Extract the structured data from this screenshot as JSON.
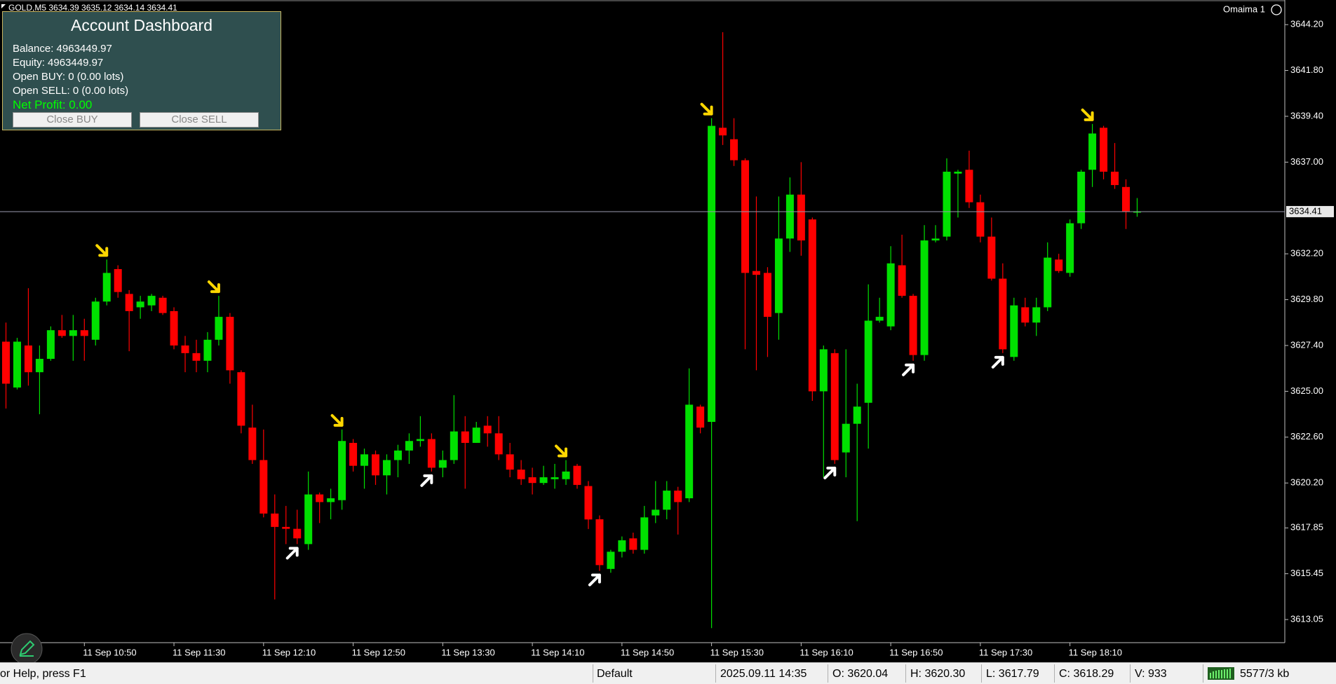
{
  "header": {
    "symbol_line": "GOLD,M5  3634.39 3635.12 3634.14 3634.41",
    "account": "Omaima 1"
  },
  "dashboard": {
    "title": "Account Dashboard",
    "balance": "Balance: 4963449.97",
    "equity": "Equity:  4963449.97",
    "open_buy": "Open BUY:  0  (0.00 lots)",
    "open_sell": "Open SELL:  0  (0.00 lots)",
    "net_profit": "Net Profit: 0.00",
    "close_buy": "Close BUY",
    "close_sell": "Close SELL"
  },
  "chart_data": {
    "type": "candlestick",
    "categories": [
      null,
      null,
      null,
      null,
      null,
      null,
      null,
      "11 Sep 10:50",
      null,
      null,
      null,
      null,
      null,
      null,
      null,
      "11 Sep 11:30",
      null,
      null,
      null,
      null,
      null,
      null,
      null,
      "11 Sep 12:10",
      null,
      null,
      null,
      null,
      null,
      null,
      null,
      "11 Sep 12:50",
      null,
      null,
      null,
      null,
      null,
      null,
      null,
      "11 Sep 13:30",
      null,
      null,
      null,
      null,
      null,
      null,
      null,
      "11 Sep 14:10",
      null,
      null,
      null,
      null,
      null,
      null,
      null,
      "11 Sep 14:50",
      null,
      null,
      null,
      null,
      null,
      null,
      null,
      "11 Sep 15:30",
      null,
      null,
      null,
      null,
      null,
      null,
      null,
      "11 Sep 16:10",
      null,
      null,
      null,
      null,
      null,
      null,
      null,
      "11 Sep 16:50",
      null,
      null,
      null,
      null,
      null,
      null,
      null,
      "11 Sep 17:30",
      null,
      null,
      null,
      null,
      null,
      null,
      null,
      "11 Sep 18:10",
      null,
      null,
      null,
      null,
      null,
      null
    ],
    "open": [
      3627.6,
      3625.2,
      3627.4,
      3626.0,
      3626.7,
      3628.2,
      3627.9,
      3628.2,
      3627.7,
      3629.7,
      3631.4,
      3630.1,
      3629.4,
      3629.5,
      3629.9,
      3629.2,
      3627.4,
      3627.0,
      3626.6,
      3627.7,
      3628.9,
      3626.0,
      3623.1,
      3621.4,
      3618.6,
      3617.9,
      3617.8,
      3617.0,
      3619.6,
      3619.2,
      3619.3,
      3622.3,
      3621.1,
      3621.7,
      3620.6,
      3621.4,
      3621.9,
      3622.4,
      3622.5,
      3621.0,
      3621.4,
      3622.9,
      3622.3,
      3623.2,
      3622.8,
      3621.7,
      3620.9,
      3620.5,
      3620.2,
      3620.4,
      3620.4,
      3621.1,
      3620.04,
      3618.3,
      3615.7,
      3616.6,
      3617.3,
      3616.7,
      3618.5,
      3618.8,
      3619.8,
      3619.4,
      3624.2,
      3623.4,
      3638.8,
      3638.2,
      3637.1,
      3631.3,
      3631.2,
      3629.1,
      3633.0,
      3635.3,
      3634.0,
      3625.0,
      3627.0,
      3621.8,
      3623.3,
      3624.4,
      3628.7,
      3628.4,
      3631.6,
      3630.0,
      3626.9,
      3632.9,
      3633.1,
      3636.4,
      3636.6,
      3634.9,
      3633.1,
      3630.9,
      3626.8,
      3629.4,
      3628.6,
      3629.4,
      3631.9,
      3631.2,
      3633.8,
      3636.6,
      3638.8,
      3636.5,
      3635.7,
      3634.39
    ],
    "high": [
      3628.6,
      3627.8,
      3630.4,
      3627.4,
      3628.4,
      3629.0,
      3629.0,
      3628.8,
      3629.9,
      3631.9,
      3631.6,
      3630.3,
      3630.0,
      3630.1,
      3630.0,
      3629.4,
      3627.9,
      3627.7,
      3628.1,
      3630.0,
      3629.1,
      3626.1,
      3624.3,
      3623.0,
      3619.6,
      3619.0,
      3618.8,
      3620.8,
      3619.7,
      3619.9,
      3623.0,
      3622.5,
      3622.0,
      3621.9,
      3621.7,
      3622.2,
      3622.8,
      3623.7,
      3622.8,
      3621.9,
      3624.8,
      3623.7,
      3623.4,
      3623.7,
      3623.7,
      3622.3,
      3621.4,
      3621.0,
      3621.1,
      3621.2,
      3621.4,
      3621.2,
      3620.3,
      3618.5,
      3616.7,
      3617.4,
      3617.6,
      3619.0,
      3620.3,
      3620.3,
      3620.0,
      3626.2,
      3624.3,
      3639.3,
      3643.8,
      3639.3,
      3637.2,
      3635.2,
      3631.5,
      3635.2,
      3636.2,
      3637.0,
      3634.1,
      3627.4,
      3627.2,
      3627.2,
      3625.4,
      3630.6,
      3629.9,
      3632.6,
      3633.2,
      3630.1,
      3633.7,
      3633.7,
      3637.2,
      3636.6,
      3637.6,
      3635.3,
      3634.1,
      3631.7,
      3629.9,
      3629.9,
      3629.9,
      3632.8,
      3632.2,
      3634.0,
      3636.6,
      3639.0,
      3638.9,
      3638.0,
      3636.1,
      3635.12
    ],
    "low": [
      3624.1,
      3625.1,
      3625.3,
      3623.8,
      3626.6,
      3627.8,
      3626.6,
      3626.6,
      3627.4,
      3629.5,
      3629.9,
      3627.1,
      3628.8,
      3629.2,
      3629.0,
      3627.2,
      3626.0,
      3626.0,
      3626.0,
      3627.4,
      3625.4,
      3622.8,
      3621.2,
      3618.4,
      3614.1,
      3617.0,
      3617.0,
      3616.7,
      3618.1,
      3618.3,
      3618.8,
      3620.8,
      3619.9,
      3620.1,
      3619.6,
      3620.5,
      3621.2,
      3622.1,
      3620.8,
      3620.5,
      3621.2,
      3619.9,
      3622.3,
      3622.1,
      3621.4,
      3620.5,
      3620.1,
      3619.6,
      3620.1,
      3619.9,
      3620.1,
      3619.9,
      3617.79,
      3615.6,
      3615.5,
      3616.3,
      3616.5,
      3616.5,
      3618.1,
      3618.3,
      3617.5,
      3619.2,
      3622.8,
      3612.6,
      3637.9,
      3636.8,
      3627.2,
      3626.1,
      3626.8,
      3627.7,
      3632.3,
      3632.1,
      3624.5,
      3620.5,
      3621.2,
      3620.5,
      3618.2,
      3622.0,
      3628.6,
      3628.2,
      3629.9,
      3626.6,
      3626.6,
      3632.8,
      3632.9,
      3634.1,
      3634.6,
      3632.8,
      3630.8,
      3627.0,
      3626.6,
      3628.4,
      3627.9,
      3629.2,
      3631.2,
      3631.0,
      3633.5,
      3635.7,
      3636.1,
      3635.6,
      3633.5,
      3634.14
    ],
    "close": [
      3625.4,
      3627.6,
      3626.0,
      3626.7,
      3628.2,
      3627.9,
      3628.2,
      3627.9,
      3629.7,
      3631.2,
      3630.2,
      3629.2,
      3629.7,
      3630.0,
      3629.1,
      3627.4,
      3627.0,
      3626.6,
      3627.7,
      3628.9,
      3626.1,
      3623.2,
      3621.4,
      3618.6,
      3617.9,
      3617.8,
      3617.3,
      3619.6,
      3619.2,
      3619.4,
      3622.4,
      3621.1,
      3621.7,
      3620.6,
      3621.4,
      3621.9,
      3622.4,
      3622.5,
      3621.0,
      3621.4,
      3622.9,
      3622.3,
      3623.1,
      3622.8,
      3621.7,
      3620.9,
      3620.4,
      3620.2,
      3620.5,
      3620.5,
      3620.8,
      3620.1,
      3618.29,
      3615.9,
      3616.6,
      3617.2,
      3616.7,
      3618.4,
      3618.8,
      3619.8,
      3619.2,
      3624.3,
      3623.1,
      3638.9,
      3638.4,
      3637.1,
      3631.2,
      3631.1,
      3628.9,
      3633.0,
      3635.3,
      3632.9,
      3625.0,
      3627.2,
      3621.4,
      3623.3,
      3624.2,
      3628.7,
      3628.9,
      3631.7,
      3630.0,
      3626.9,
      3632.9,
      3633.0,
      3636.5,
      3636.5,
      3634.9,
      3633.1,
      3630.9,
      3627.2,
      3629.5,
      3628.6,
      3629.4,
      3632.0,
      3631.3,
      3633.8,
      3636.5,
      3638.5,
      3636.5,
      3635.8,
      3634.4,
      3634.41
    ],
    "up_color": "#00e000",
    "down_color": "#ff0000",
    "sell_arrows": [
      9,
      19,
      30,
      50,
      63,
      97
    ],
    "buy_arrows": [
      26,
      38,
      53,
      74,
      81,
      89
    ],
    "sell_arrow_color": "#ffd700",
    "buy_arrow_color": "#ffffff",
    "current_price": 3634.41,
    "ylim": [
      3611.84,
      3645.49
    ],
    "yticks": [
      {
        "value": 3644.2,
        "label": "3644.20"
      },
      {
        "value": 3641.8,
        "label": "3641.80"
      },
      {
        "value": 3639.4,
        "label": "3639.40"
      },
      {
        "value": 3637.0,
        "label": "3637.00"
      },
      {
        "value": 3632.2,
        "label": "3632.20"
      },
      {
        "value": 3629.8,
        "label": "3629.80"
      },
      {
        "value": 3627.4,
        "label": "3627.40"
      },
      {
        "value": 3625.0,
        "label": "3625.00"
      },
      {
        "value": 3622.6,
        "label": "3622.60"
      },
      {
        "value": 3620.2,
        "label": "3620.20"
      },
      {
        "value": 3617.85,
        "label": "3617.85"
      },
      {
        "value": 3615.45,
        "label": "3615.45"
      },
      {
        "value": 3613.05,
        "label": "3613.05"
      }
    ],
    "grid": false
  },
  "status_bar": {
    "help": "or Help, press F1",
    "profile": "Default",
    "time": "2025.09.11 14:35",
    "open": "O: 3620.04",
    "high": "H: 3620.30",
    "low": "L: 3617.79",
    "close": "C: 3618.29",
    "volume": "V: 933",
    "traffic": "5577/3 kb"
  }
}
